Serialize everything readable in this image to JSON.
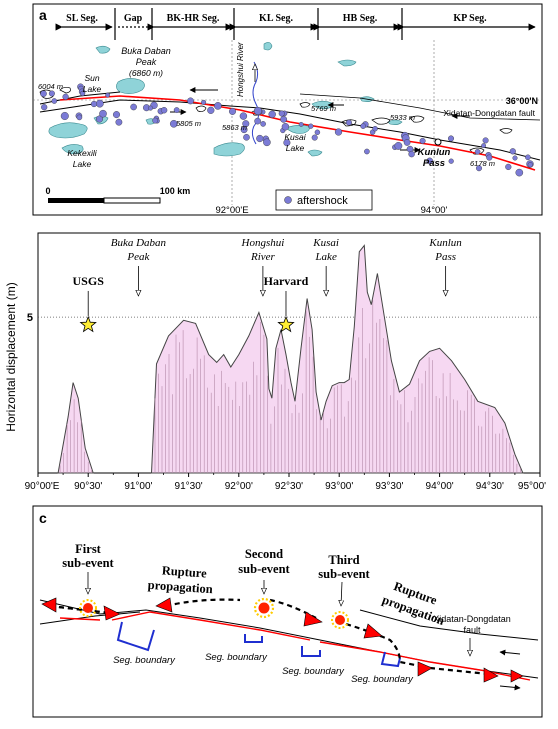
{
  "panel_a": {
    "letter": "a",
    "segments": [
      {
        "label": "SL Seg."
      },
      {
        "label": "Gap"
      },
      {
        "label": "BK-HR Seg."
      },
      {
        "label": "KL Seg."
      },
      {
        "label": "HB Seg."
      },
      {
        "label": "KP Seg."
      }
    ],
    "places": {
      "buka_daban": "Buka Daban",
      "buka_daban_peak": "Peak",
      "buka_daban_elev": "(6860 m)",
      "sun_lake_1": "Sun",
      "sun_lake_2": "Lake",
      "kekexili_1": "Kekexili",
      "kekexili_2": "Lake",
      "hongshui_river": "Hongshui River",
      "kusai_1": "Kusai",
      "kusai_2": "Lake",
      "kunlun_pass_1": "Kunlun",
      "kunlun_pass_2": "Pass",
      "fault_name": "Xidatan-Dongdatan  fault",
      "lat_label": "36°00'N",
      "lon_92": "92°00'E",
      "lon_94": "94°00'"
    },
    "elevations": [
      "6004 m",
      "5805 m",
      "5863 m",
      "5769 m",
      "5933 m",
      "6178 m"
    ],
    "scale": {
      "zero": "0",
      "end": "100 km"
    },
    "legend_label": "aftershock",
    "colors": {
      "aftershock": "#7b7bd6",
      "rupture": "#ff0000",
      "river": "#3344cc",
      "lake": "#8fd3d8"
    }
  },
  "chart_data": {
    "type": "area",
    "panel_letter": "b",
    "ylabel": "Horizontal displacement (m)",
    "ytick_label": "5",
    "xlim": [
      90.0,
      95.0
    ],
    "ylim": [
      0,
      7.7
    ],
    "reference_line_y": 5,
    "xticks": [
      {
        "x": 90.0,
        "label": "90°00'E"
      },
      {
        "x": 90.5,
        "label": "90°30'"
      },
      {
        "x": 91.0,
        "label": "91°00'"
      },
      {
        "x": 91.5,
        "label": "91°30'"
      },
      {
        "x": 92.0,
        "label": "92°00'"
      },
      {
        "x": 92.5,
        "label": "92°30'"
      },
      {
        "x": 93.0,
        "label": "93°00'"
      },
      {
        "x": 93.5,
        "label": "93°30'"
      },
      {
        "x": 94.0,
        "label": "94°00'"
      },
      {
        "x": 94.5,
        "label": "94°30'"
      },
      {
        "x": 95.0,
        "label": "95°00'"
      }
    ],
    "profile": [
      [
        90.2,
        0
      ],
      [
        90.3,
        1.8
      ],
      [
        90.35,
        2.9
      ],
      [
        90.4,
        2.4
      ],
      [
        90.47,
        0.8
      ],
      [
        90.55,
        0
      ],
      [
        91.13,
        0
      ],
      [
        91.18,
        3.5
      ],
      [
        91.3,
        4.4
      ],
      [
        91.45,
        4.9
      ],
      [
        91.57,
        4.8
      ],
      [
        91.7,
        3.8
      ],
      [
        91.78,
        3.55
      ],
      [
        91.85,
        3.8
      ],
      [
        91.92,
        3.4
      ],
      [
        92.0,
        3.8
      ],
      [
        92.1,
        4.4
      ],
      [
        92.2,
        5.15
      ],
      [
        92.28,
        4.3
      ],
      [
        92.3,
        2.7
      ],
      [
        92.33,
        2.4
      ],
      [
        92.37,
        4.0
      ],
      [
        92.42,
        4.6
      ],
      [
        92.47,
        3.8
      ],
      [
        92.52,
        2.9
      ],
      [
        92.56,
        2.3
      ],
      [
        92.62,
        4.0
      ],
      [
        92.68,
        5.6
      ],
      [
        92.73,
        4.6
      ],
      [
        92.77,
        2.6
      ],
      [
        92.82,
        1.7
      ],
      [
        92.87,
        2.3
      ],
      [
        92.93,
        2.8
      ],
      [
        93.0,
        2.9
      ],
      [
        93.05,
        2.9
      ],
      [
        93.1,
        3.0
      ],
      [
        93.15,
        4.7
      ],
      [
        93.2,
        7.1
      ],
      [
        93.25,
        7.3
      ],
      [
        93.28,
        5.8
      ],
      [
        93.32,
        5.4
      ],
      [
        93.38,
        6.4
      ],
      [
        93.45,
        5.0
      ],
      [
        93.52,
        3.6
      ],
      [
        93.6,
        2.6
      ],
      [
        93.7,
        2.85
      ],
      [
        93.8,
        3.6
      ],
      [
        93.9,
        3.9
      ],
      [
        94.0,
        4.0
      ],
      [
        94.12,
        3.6
      ],
      [
        94.25,
        3.0
      ],
      [
        94.38,
        2.3
      ],
      [
        94.55,
        2.1
      ],
      [
        94.65,
        1.6
      ],
      [
        94.75,
        0.6
      ],
      [
        94.83,
        0
      ]
    ],
    "place_labels": [
      {
        "x": 91.0,
        "line1": "Buka Daban",
        "line2": "Peak"
      },
      {
        "x": 92.24,
        "line1": "Hongshui",
        "line2": "River"
      },
      {
        "x": 92.87,
        "line1": "Kusai",
        "line2": "Lake"
      },
      {
        "x": 94.06,
        "line1": "Kunlun",
        "line2": "Pass"
      }
    ],
    "epicenters": [
      {
        "x": 90.5,
        "y": 4.75,
        "label": "USGS"
      },
      {
        "x": 92.47,
        "y": 4.75,
        "label": "Harvard"
      }
    ]
  },
  "panel_c": {
    "letter": "c",
    "first": [
      "First",
      "sub-event"
    ],
    "rupture1": [
      "Rupture",
      "propagation"
    ],
    "second": [
      "Second",
      "sub-event"
    ],
    "third": [
      "Third",
      "sub-event"
    ],
    "rupture2": [
      "Rupture",
      "propagation"
    ],
    "fault": [
      "Xidatan-Dongdatan",
      "fault"
    ],
    "seg_boundary": "Seg. boundary"
  }
}
